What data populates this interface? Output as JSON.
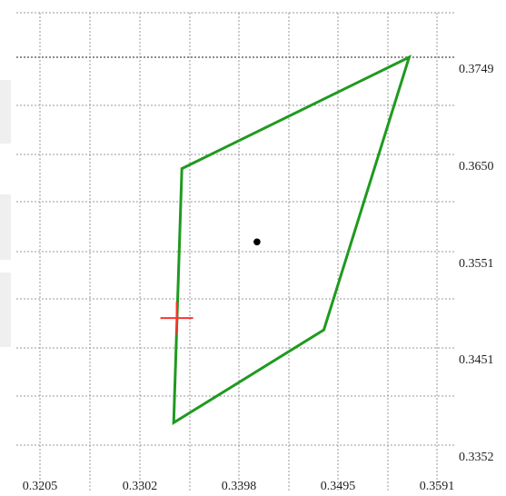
{
  "chart_data": {
    "type": "scatter",
    "title": "",
    "xlabel": "",
    "ylabel": "",
    "x_ticks": [
      "0.3205",
      "0.3302",
      "0.3398",
      "0.3495",
      "0.3591"
    ],
    "y_ticks": [
      "0.3749",
      "0.3650",
      "0.3551",
      "0.3451",
      "0.3352"
    ],
    "xlim": [
      0.318,
      0.365
    ],
    "ylim": [
      0.333,
      0.379
    ],
    "grid": true,
    "legend": "none",
    "colors": {
      "polygon": "#1f9a1f",
      "marker": "#ff3030",
      "point": "#000000",
      "grid": "#9a9a9a",
      "labels": "#1f1f1f"
    },
    "series": [
      {
        "type": "polygon",
        "values": [
          {
            "x": 0.3564,
            "y": 0.3749
          },
          {
            "x": 0.3343,
            "y": 0.3635
          },
          {
            "x": 0.3335,
            "y": 0.3375
          },
          {
            "x": 0.3481,
            "y": 0.347
          }
        ]
      },
      {
        "type": "cross",
        "values": [
          {
            "x": 0.3338,
            "y": 0.3482
          }
        ]
      },
      {
        "type": "point",
        "values": [
          {
            "x": 0.3416,
            "y": 0.356
          }
        ]
      }
    ]
  }
}
